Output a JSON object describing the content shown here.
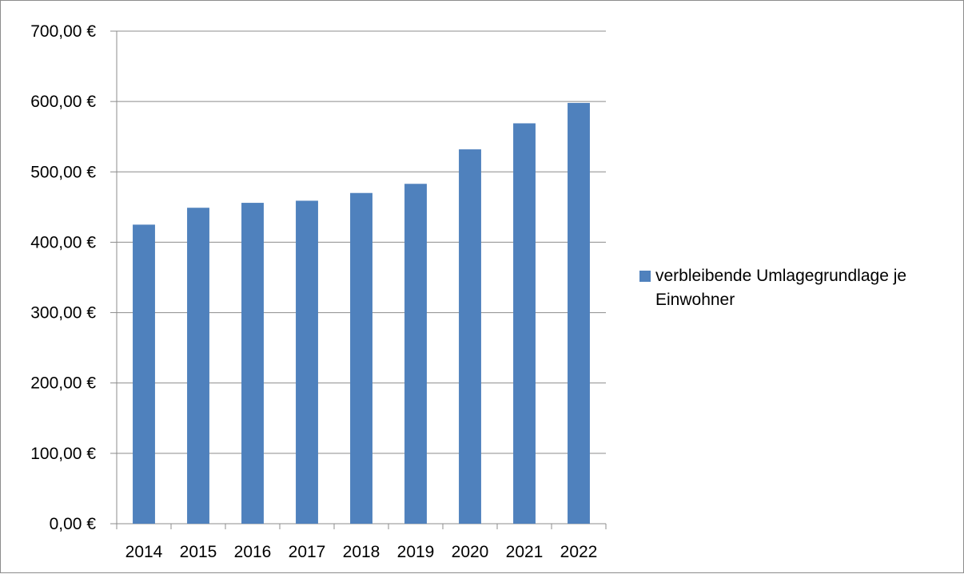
{
  "chart_data": {
    "type": "bar",
    "categories": [
      "2014",
      "2015",
      "2016",
      "2017",
      "2018",
      "2019",
      "2020",
      "2021",
      "2022"
    ],
    "series": [
      {
        "name": "verbleibende Umlagegrundlage je Einwohner",
        "values": [
          425,
          449,
          456,
          459,
          470,
          483,
          532,
          569,
          598
        ],
        "color": "#4f81bd"
      }
    ],
    "ylim": [
      0,
      700
    ],
    "yticks": [
      0,
      100,
      200,
      300,
      400,
      500,
      600,
      700
    ],
    "ytick_labels": [
      "0,00 €",
      "100,00 €",
      "200,00 €",
      "300,00 €",
      "400,00 €",
      "500,00 €",
      "600,00 €",
      "700,00 €"
    ],
    "grid": true,
    "legend_position": "right",
    "title": "",
    "xlabel": "",
    "ylabel": ""
  }
}
